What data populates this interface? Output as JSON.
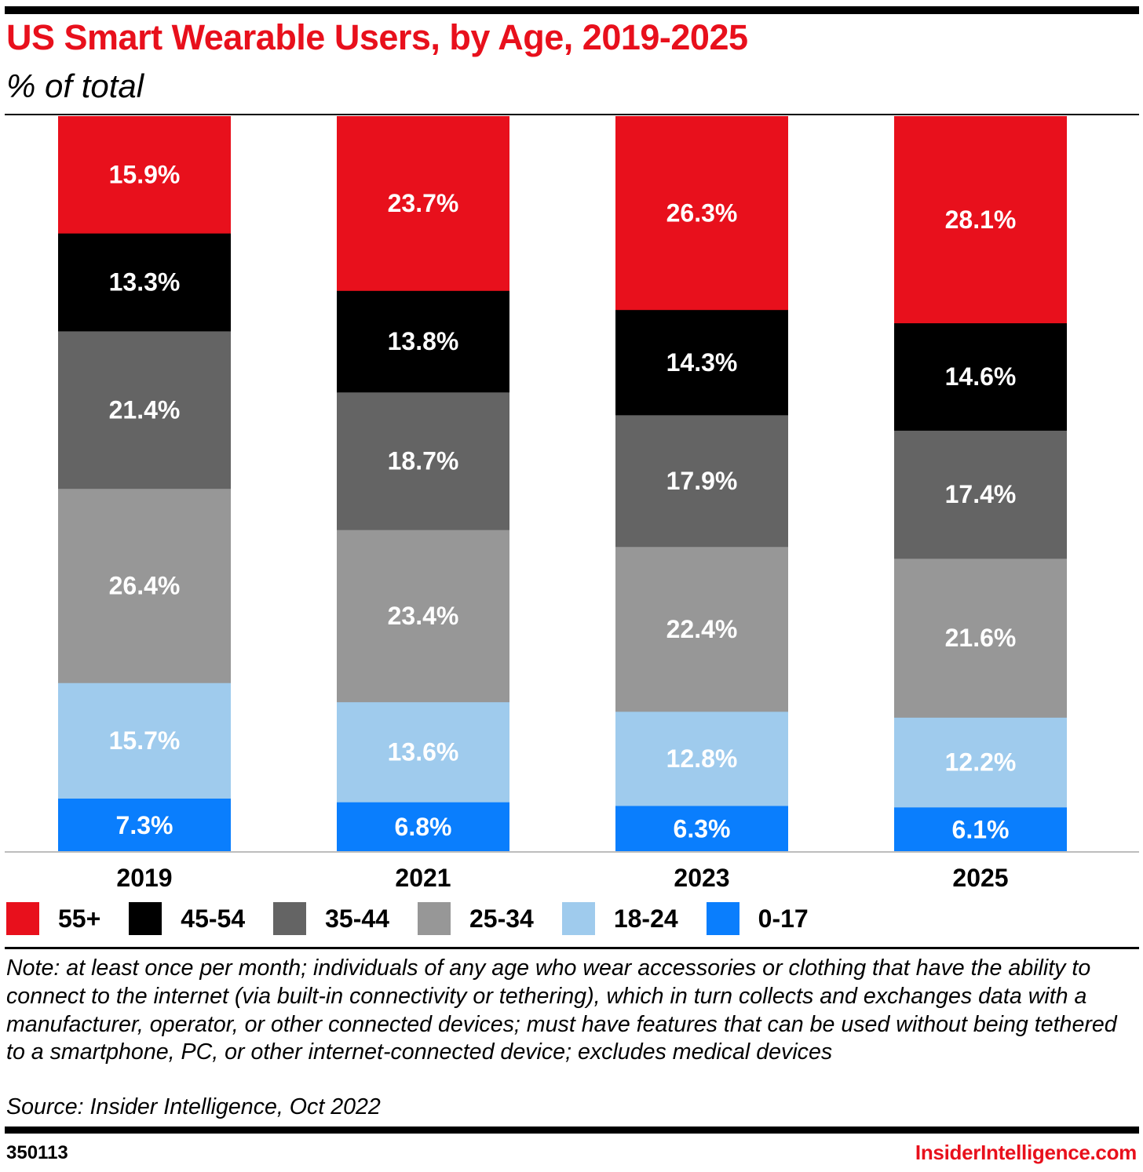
{
  "header": {
    "title": "US Smart Wearable Users, by Age, 2019-2025",
    "subtitle": "% of total"
  },
  "chart_data": {
    "type": "bar",
    "stacked": true,
    "title": "US Smart Wearable Users, by Age, 2019-2025",
    "subtitle": "% of total",
    "categories": [
      "2019",
      "2021",
      "2023",
      "2025"
    ],
    "ylim": [
      0,
      100
    ],
    "grid": false,
    "legend_position": "bottom",
    "series": [
      {
        "name": "0-17",
        "color": "#0a7efd",
        "values": [
          7.3,
          6.8,
          6.3,
          6.1
        ],
        "labels": [
          "7.3%",
          "6.8%",
          "6.3%",
          "6.1%"
        ]
      },
      {
        "name": "18-24",
        "color": "#9fcbed",
        "values": [
          15.7,
          13.6,
          12.8,
          12.2
        ],
        "labels": [
          "15.7%",
          "13.6%",
          "12.8%",
          "12.2%"
        ]
      },
      {
        "name": "25-34",
        "color": "#979797",
        "values": [
          26.4,
          23.4,
          22.4,
          21.6
        ],
        "labels": [
          "26.4%",
          "23.4%",
          "22.4%",
          "21.6%"
        ]
      },
      {
        "name": "35-44",
        "color": "#646464",
        "values": [
          21.4,
          18.7,
          17.9,
          17.4
        ],
        "labels": [
          "21.4%",
          "18.7%",
          "17.9%",
          "17.4%"
        ]
      },
      {
        "name": "45-54",
        "color": "#000000",
        "values": [
          13.3,
          13.8,
          14.3,
          14.6
        ],
        "labels": [
          "13.3%",
          "13.8%",
          "14.3%",
          "14.6%"
        ]
      },
      {
        "name": "55+",
        "color": "#e8101c",
        "values": [
          15.9,
          23.7,
          26.3,
          28.1
        ],
        "labels": [
          "15.9%",
          "23.7%",
          "26.3%",
          "28.1%"
        ]
      }
    ]
  },
  "legend": {
    "items": [
      {
        "label": "55+",
        "color": "#e8101c"
      },
      {
        "label": "45-54",
        "color": "#000000"
      },
      {
        "label": "35-44",
        "color": "#646464"
      },
      {
        "label": "25-34",
        "color": "#979797"
      },
      {
        "label": "18-24",
        "color": "#9fcbed"
      },
      {
        "label": "0-17",
        "color": "#0a7efd"
      }
    ]
  },
  "footer": {
    "note": "Note: at least once per month; individuals of any age who wear accessories or clothing that have the ability to connect to the internet (via built-in connectivity or tethering), which in turn collects and exchanges data with a manufacturer, operator, or other connected devices; must have features that can be used without being tethered to a smartphone, PC, or other internet-connected device; excludes medical devices",
    "source": "Source: Insider Intelligence, Oct 2022",
    "chart_id": "350113",
    "brand": "InsiderIntelligence.com"
  }
}
